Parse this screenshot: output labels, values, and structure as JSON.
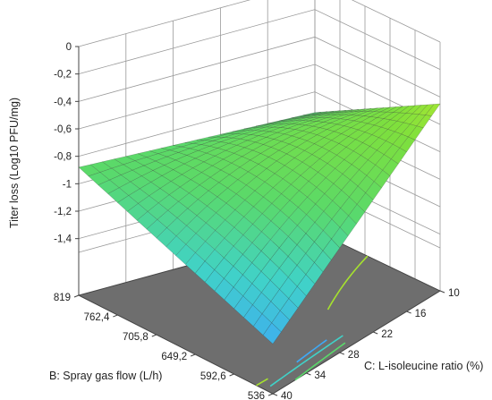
{
  "chart_data": {
    "type": "surface3d",
    "zlabel": "Titer loss (Log10 PFU/mg)",
    "xlabel": "C: L-isoleucine ratio (%)",
    "ylabel": "B: Spray gas flow (L/h)",
    "z_ticks": [
      "0",
      "-0,2",
      "-0,4",
      "-0,6",
      "-0,8",
      "-1",
      "-1,2",
      "-1,4"
    ],
    "x_ticks": [
      "10",
      "16",
      "22",
      "28",
      "34",
      "40"
    ],
    "y_ticks": [
      "819",
      "762,4",
      "705,8",
      "649,2",
      "592,6",
      "536"
    ],
    "x_range": [
      10,
      40
    ],
    "y_range": [
      536,
      819
    ],
    "z_range": [
      -1.5,
      0
    ],
    "surface_corners": {
      "x10_y819": -0.95,
      "x10_y536": -0.45,
      "x40_y819": -0.88,
      "x40_y536": -1.45
    },
    "surface_center": -0.78,
    "grid": true,
    "colormap": [
      "#3fa9f5",
      "#40d2c8",
      "#5ad96a",
      "#7fe03c",
      "#c8ec2a"
    ],
    "floor_color": "#6e6e6e"
  }
}
